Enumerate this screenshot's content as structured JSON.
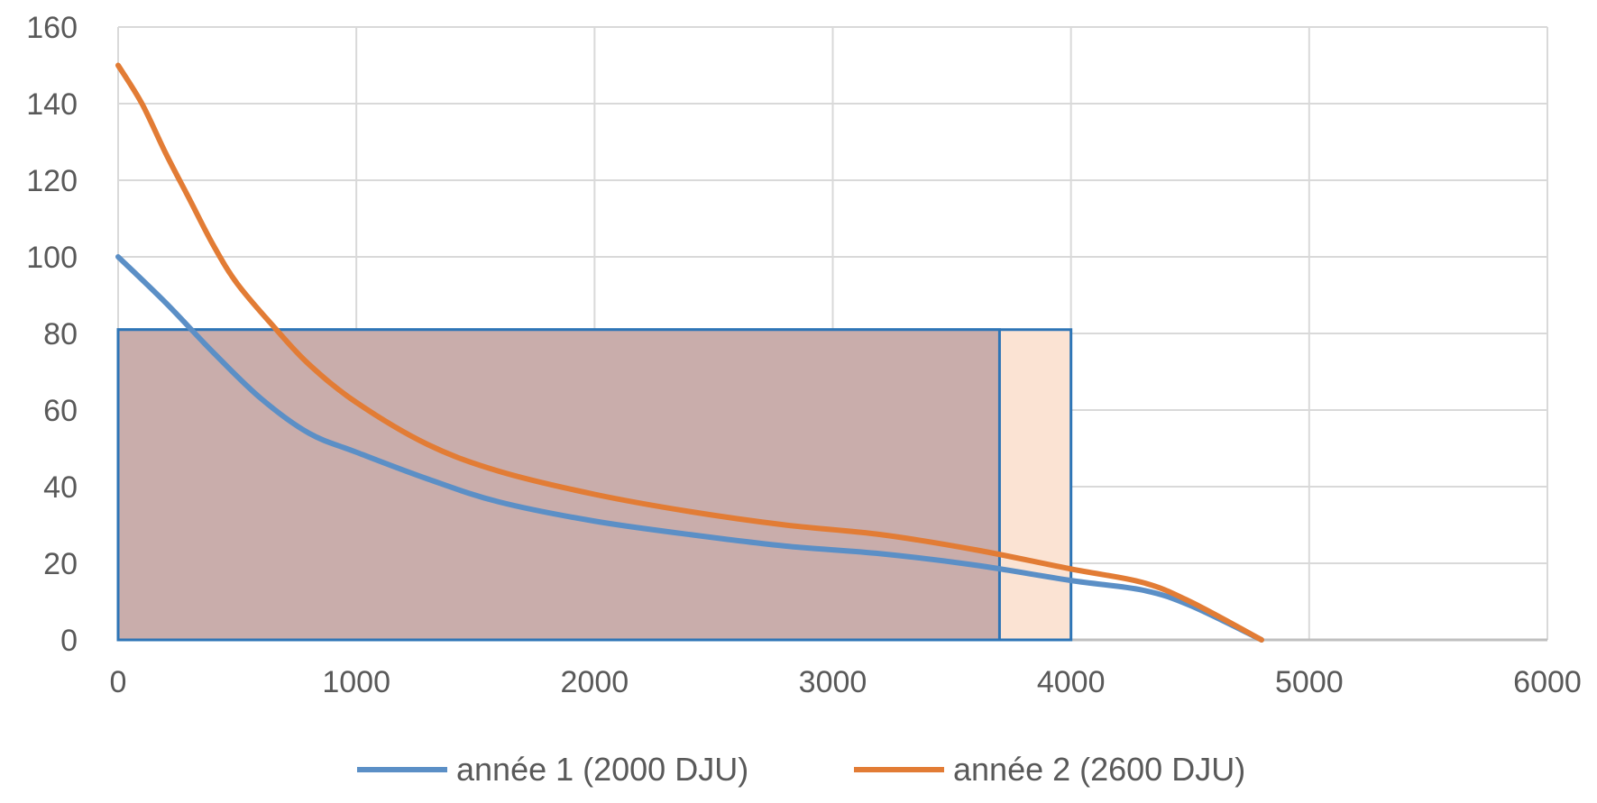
{
  "chart_data": {
    "type": "line",
    "title": "",
    "xlabel": "",
    "ylabel": "",
    "xlim": [
      0,
      6000
    ],
    "ylim": [
      0,
      160
    ],
    "grid": true,
    "legend_position": "bottom",
    "x_ticks": [
      "0",
      "1000",
      "2000",
      "3000",
      "4000",
      "5000",
      "6000"
    ],
    "y_ticks": [
      "0",
      "20",
      "40",
      "60",
      "80",
      "100",
      "120",
      "140",
      "160"
    ],
    "series": [
      {
        "name": "année 1 (2000 DJU)",
        "color": "#5B8FC6",
        "x": [
          0,
          200,
          400,
          600,
          800,
          1000,
          1300,
          1600,
          2000,
          2400,
          2800,
          3200,
          3600,
          4000,
          4300,
          4500,
          4800
        ],
        "y": [
          100,
          88,
          75,
          63,
          54,
          49,
          42,
          36,
          31,
          27.5,
          24.5,
          22.5,
          19.5,
          15.5,
          13,
          9,
          0
        ]
      },
      {
        "name": "année 2 (2600 DJU)",
        "color": "#E27C35",
        "x": [
          0,
          100,
          200,
          300,
          400,
          500,
          650,
          800,
          1000,
          1300,
          1600,
          2000,
          2400,
          2800,
          3200,
          3600,
          4000,
          4300,
          4500,
          4800
        ],
        "y": [
          150,
          140,
          127,
          115,
          103,
          93,
          82,
          72,
          62,
          51,
          44,
          38,
          33.5,
          30,
          27.5,
          23.5,
          18.5,
          15,
          10,
          0
        ]
      }
    ],
    "shaded_areas": [
      {
        "x0": 0,
        "x1": 4000,
        "y0": 0,
        "y1": 81,
        "fill": "#FBE3D3",
        "stroke": "#2E75B6"
      },
      {
        "x0": 0,
        "x1": 3700,
        "y0": 0,
        "y1": 81,
        "fill": "#C9ADAB",
        "stroke": "#2E75B6"
      }
    ]
  }
}
